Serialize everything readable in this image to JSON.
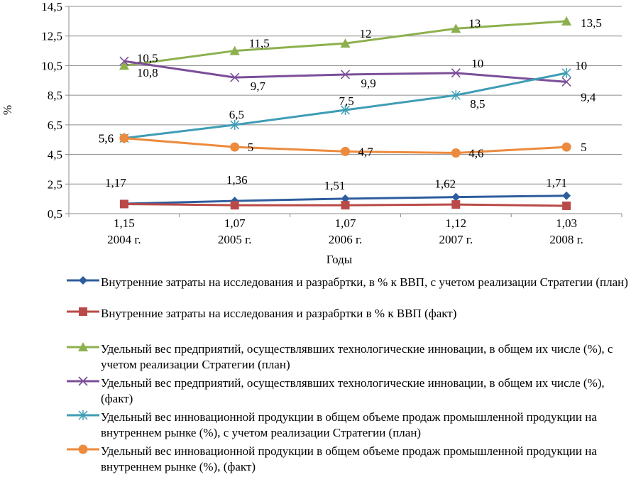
{
  "chart_data": {
    "type": "line",
    "xlabel": "Годы",
    "ylabel": "%",
    "ylim": [
      0.5,
      14.5
    ],
    "y_ticks": [
      "0,5",
      "2,5",
      "4,5",
      "6,5",
      "8,5",
      "10,5",
      "12,5",
      "14,5"
    ],
    "categories": [
      "2004 г.",
      "2005 г.",
      "2006 г.",
      "2007 г.",
      "2008 г."
    ],
    "legend_position": "bottom",
    "grid": "horizontal",
    "series": [
      {
        "name": "Внутренние затраты на исследования и разрабртки, в % к ВВП, с учетом реализации Стратегии (план)",
        "color": "#2e5d9e",
        "marker": "diamond",
        "values": [
          1.17,
          1.36,
          1.51,
          1.62,
          1.71
        ],
        "labels": [
          "1,17",
          "1,36",
          "1,51",
          "1,62",
          "1,71"
        ]
      },
      {
        "name": "Внутренние затраты на исследования и разрабртки в % к ВВП (факт)",
        "color": "#b94a48",
        "marker": "square",
        "values": [
          1.15,
          1.07,
          1.07,
          1.12,
          1.03
        ],
        "labels": [
          "1,15",
          "1,07",
          "1,07",
          "1,12",
          "1,03"
        ]
      },
      {
        "name": "Удельный вес предприятий, осуществлявших технологические инновации, в общем их числе (%), с учетом реализации Стратегии (план)",
        "color": "#8db04e",
        "marker": "triangle",
        "values": [
          10.5,
          11.5,
          12,
          13,
          13.5
        ],
        "labels": [
          "10,5",
          "11,5",
          "12",
          "13",
          "13,5"
        ]
      },
      {
        "name": "Удельный вес предприятий, осуществлявших технологические инновации, в общем их числе (%), (факт)",
        "color": "#7b4e99",
        "marker": "x",
        "values": [
          10.8,
          9.7,
          9.9,
          10,
          9.4
        ],
        "labels": [
          "10,8",
          "9,7",
          "9,9",
          "10",
          "9,4"
        ]
      },
      {
        "name": "Удельный вес инновационной продукции в общем объеме продаж промышленной продукции на внутреннем рынке (%), с учетом реализации Стратегии (план)",
        "color": "#3e9db5",
        "marker": "star",
        "values": [
          5.6,
          6.5,
          7.5,
          8.5,
          10
        ],
        "labels": [
          "5,6",
          "6,5",
          "7,5",
          "8,5",
          "10"
        ]
      },
      {
        "name": "Удельный вес инновационной продукции в общем объеме продаж промышленной продукции на внутреннем рынке (%), (факт)",
        "color": "#ec8a3d",
        "marker": "circle",
        "values": [
          5.6,
          5,
          4.7,
          4.6,
          5
        ],
        "labels": [
          "5,6",
          "5",
          "4,7",
          "4,6",
          "5"
        ]
      }
    ]
  }
}
